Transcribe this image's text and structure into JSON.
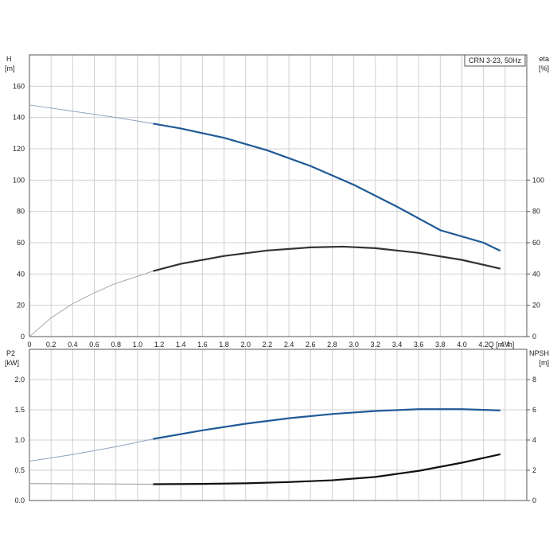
{
  "chart_data": [
    {
      "type": "line",
      "legend_label": "CRN 3-23, 50Hz",
      "legend_position": "top-right",
      "grid": true,
      "xlabel": "Q [m³/h]",
      "xlim": [
        0,
        4.6
      ],
      "x_ticks": [
        "0",
        "0.2",
        "0.4",
        "0.6",
        "0.8",
        "1.0",
        "1.2",
        "1.4",
        "1.6",
        "1.8",
        "2.0",
        "2.2",
        "2.4",
        "2.6",
        "2.8",
        "3.0",
        "3.2",
        "3.4",
        "3.6",
        "3.8",
        "4.0",
        "4.2",
        "4.4"
      ],
      "y_left": {
        "label_line1": "H",
        "label_line2": "[m]",
        "lim": [
          0,
          180
        ],
        "ticks": [
          "0",
          "20",
          "40",
          "60",
          "80",
          "100",
          "120",
          "140",
          "160"
        ]
      },
      "y_right": {
        "label_line1": "eta",
        "label_line2": "[%]",
        "lim": [
          0,
          180
        ],
        "ticks": [
          "0",
          "20",
          "40",
          "60",
          "80",
          "100"
        ]
      },
      "series": [
        {
          "axis": "left",
          "color": "#1f5a96",
          "thin_color": "#8fa3c0",
          "operating_start": 1.15,
          "x": [
            0,
            0.4,
            0.8,
            1.15,
            1.4,
            1.8,
            2.2,
            2.6,
            3.0,
            3.4,
            3.8,
            4.2,
            4.35
          ],
          "y": [
            148,
            144,
            140,
            136,
            133,
            127,
            119,
            109,
            97,
            83,
            68,
            60,
            55
          ]
        },
        {
          "axis": "right",
          "color": "#333333",
          "thin_color": "#aaaaaa",
          "operating_start": 1.15,
          "x": [
            0,
            0.2,
            0.4,
            0.6,
            0.8,
            1.0,
            1.15,
            1.4,
            1.8,
            2.2,
            2.6,
            2.9,
            3.2,
            3.6,
            4.0,
            4.35
          ],
          "y": [
            0,
            12,
            21,
            28,
            34,
            38.5,
            42,
            46.5,
            51.5,
            55,
            57,
            57.5,
            56.5,
            53.5,
            49,
            43.5
          ]
        }
      ]
    },
    {
      "type": "line",
      "grid": true,
      "xlim": [
        0,
        4.6
      ],
      "y_left": {
        "label_line1": "P2",
        "label_line2": "[kW]",
        "lim": [
          0,
          2.5
        ],
        "ticks": [
          "0.0",
          "0.5",
          "1.0",
          "1.5",
          "2.0"
        ]
      },
      "y_right": {
        "label_line1": "NPSH",
        "label_line2": "[m]",
        "lim": [
          0,
          10
        ],
        "ticks": [
          "0",
          "2",
          "4",
          "6",
          "8"
        ]
      },
      "series": [
        {
          "axis": "left",
          "color": "#1f5a96",
          "thin_color": "#8fa3c0",
          "operating_start": 1.15,
          "x": [
            0,
            0.4,
            0.8,
            1.15,
            1.6,
            2.0,
            2.4,
            2.8,
            3.2,
            3.6,
            4.0,
            4.35
          ],
          "y": [
            0.65,
            0.76,
            0.89,
            1.02,
            1.16,
            1.27,
            1.36,
            1.43,
            1.48,
            1.51,
            1.51,
            1.49
          ]
        },
        {
          "axis": "right",
          "color": "#111111",
          "thin_color": "#999999",
          "operating_start": 1.15,
          "x": [
            0,
            0.6,
            1.15,
            1.6,
            2.0,
            2.4,
            2.8,
            3.2,
            3.6,
            4.0,
            4.35
          ],
          "y": [
            1.12,
            1.1,
            1.08,
            1.1,
            1.14,
            1.22,
            1.34,
            1.56,
            1.96,
            2.5,
            3.05
          ]
        }
      ]
    }
  ]
}
